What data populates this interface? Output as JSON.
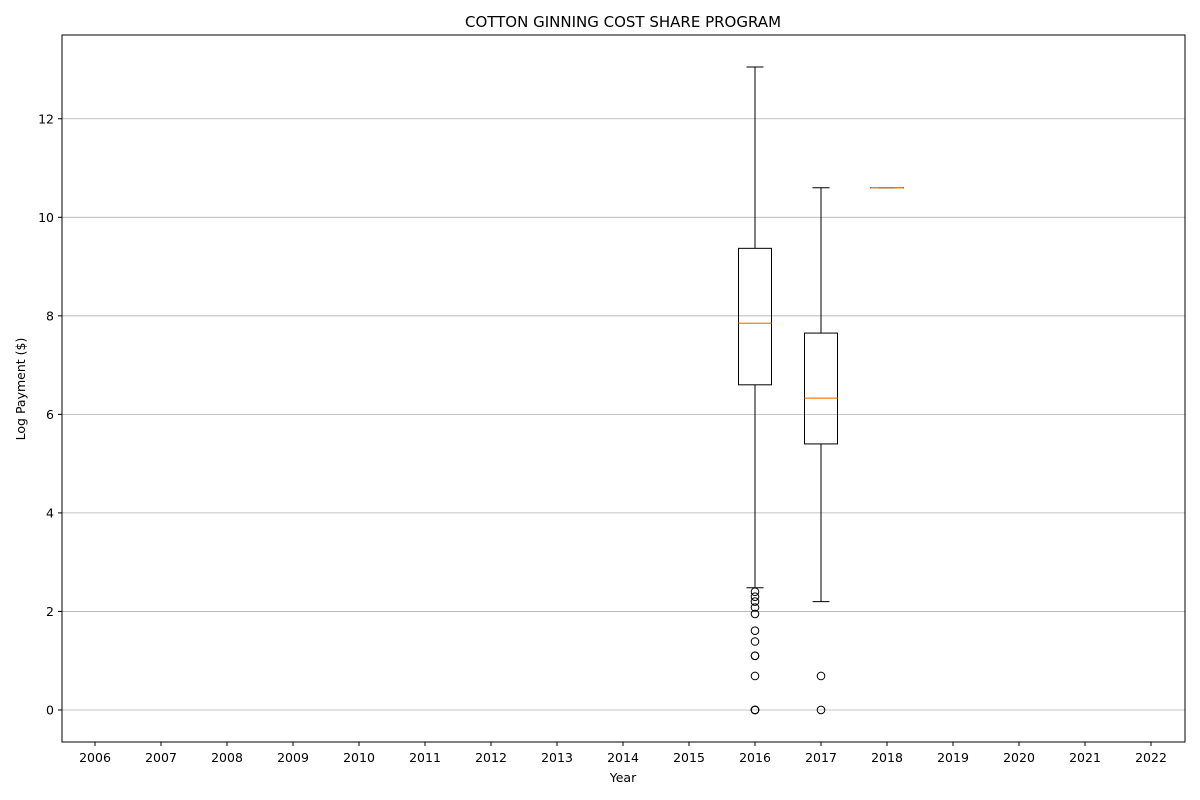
{
  "chart_data": {
    "type": "box",
    "title": "COTTON GINNING COST SHARE PROGRAM",
    "xlabel": "Year",
    "ylabel": "Log Payment ($)",
    "categories": [
      "2006",
      "2007",
      "2008",
      "2009",
      "2010",
      "2011",
      "2012",
      "2013",
      "2014",
      "2015",
      "2016",
      "2017",
      "2018",
      "2019",
      "2020",
      "2021",
      "2022"
    ],
    "ylim": [
      -0.65,
      13.7
    ],
    "yticks": [
      0,
      2,
      4,
      6,
      8,
      10,
      12
    ],
    "grid": "y",
    "colors": {
      "box": "#000000",
      "median": "#ff7f0e",
      "grid": "#b0b0b0"
    },
    "boxes": [
      {
        "category": "2016",
        "whisker_low": 2.48,
        "q1": 6.6,
        "median": 7.85,
        "q3": 9.37,
        "whisker_high": 13.05,
        "outliers": [
          0.0,
          0.0,
          0.0,
          0.69,
          1.1,
          1.1,
          1.39,
          1.61,
          1.95,
          2.08,
          2.2,
          2.3,
          2.4
        ]
      },
      {
        "category": "2017",
        "whisker_low": 2.2,
        "q1": 5.4,
        "median": 6.33,
        "q3": 7.65,
        "whisker_high": 10.6,
        "outliers": [
          0.0,
          0.69
        ]
      },
      {
        "category": "2018",
        "whisker_low": 10.6,
        "q1": 10.6,
        "median": 10.6,
        "q3": 10.6,
        "whisker_high": 10.6,
        "outliers": []
      }
    ]
  }
}
